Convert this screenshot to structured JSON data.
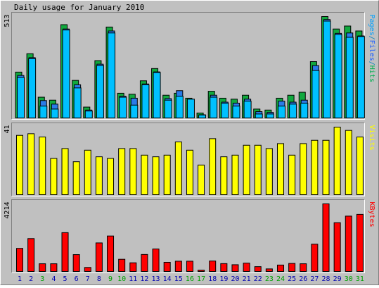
{
  "chart_data": {
    "type": "bar",
    "title": "Daily usage for January 2010",
    "categories": [
      "1",
      "2",
      "3",
      "4",
      "5",
      "6",
      "7",
      "8",
      "9",
      "10",
      "11",
      "12",
      "13",
      "14",
      "15",
      "16",
      "17",
      "18",
      "19",
      "20",
      "21",
      "22",
      "23",
      "24",
      "25",
      "26",
      "27",
      "28",
      "29",
      "30",
      "31"
    ],
    "weekend_days": [
      "3",
      "9",
      "10",
      "16",
      "17",
      "23",
      "24",
      "30",
      "31"
    ],
    "panels": [
      {
        "id": "top",
        "max_label": "513",
        "ymax": 513,
        "legend": [
          {
            "text": "Pages",
            "color": "#00a0ff"
          },
          {
            "text": "/",
            "color": "#0080c0"
          },
          {
            "text": "Files",
            "color": "#2060ff"
          },
          {
            "text": "/",
            "color": "#0080c0"
          },
          {
            "text": "Hits",
            "color": "#00b050"
          }
        ],
        "series": [
          {
            "name": "Hits",
            "color": "#11a83e",
            "values": [
              232,
              325,
              105,
              90,
              472,
              190,
              55,
              290,
              460,
              125,
              120,
              188,
              250,
              115,
              125,
              100,
              25,
              135,
              100,
              95,
              115,
              45,
              40,
              100,
              115,
              130,
              285,
              513,
              450,
              465,
              440
            ]
          },
          {
            "name": "Files",
            "color": "#2a7be8",
            "values": [
              215,
              305,
              88,
              70,
              450,
              168,
              40,
              272,
              440,
              110,
              100,
              172,
              233,
              98,
              138,
              82,
              16,
              115,
              80,
              75,
              95,
              32,
              28,
              85,
              80,
              90,
              265,
              498,
              428,
              430,
              415
            ]
          },
          {
            "name": "Pages",
            "color": "#00c0ff",
            "values": [
              205,
              300,
              60,
              45,
              445,
              152,
              35,
              265,
              430,
              105,
              65,
              168,
              230,
              90,
              110,
              95,
              15,
              105,
              75,
              60,
              85,
              20,
              20,
              60,
              70,
              75,
              240,
              490,
              422,
              408,
              412
            ]
          }
        ]
      },
      {
        "id": "mid",
        "max_label": "41",
        "ymax": 41,
        "legend": [
          {
            "text": "Visits",
            "color": "#ffff00"
          }
        ],
        "series": [
          {
            "name": "Visits",
            "color": "#ffff00",
            "values": [
              36,
              37,
              35,
              22,
              28,
              20,
              27,
              23,
              22,
              28,
              28,
              24,
              23,
              24,
              32,
              27,
              18,
              34,
              23,
              24,
              30,
              30,
              28,
              31,
              24,
              31,
              33,
              33,
              41,
              39,
              35
            ]
          }
        ]
      },
      {
        "id": "bot",
        "max_label": "4214",
        "ymax": 4214,
        "legend": [
          {
            "text": "KBytes",
            "color": "#ff0000"
          }
        ],
        "series": [
          {
            "name": "KBytes",
            "color": "#ff0000",
            "values": [
              1440,
              2050,
              480,
              480,
              2420,
              1050,
              250,
              1780,
              2210,
              760,
              540,
              1060,
              1400,
              570,
              640,
              640,
              80,
              650,
              490,
              420,
              520,
              300,
              160,
              400,
              500,
              480,
              1700,
              4214,
              3040,
              3450,
              3560
            ]
          }
        ]
      }
    ]
  },
  "colors": {
    "background": "#c0c0c0",
    "frame_dark": "#808080",
    "frame_light": "#ffffff",
    "weekday_label": "#0000b0",
    "weekend_label": "#00a000",
    "text": "#000000"
  }
}
